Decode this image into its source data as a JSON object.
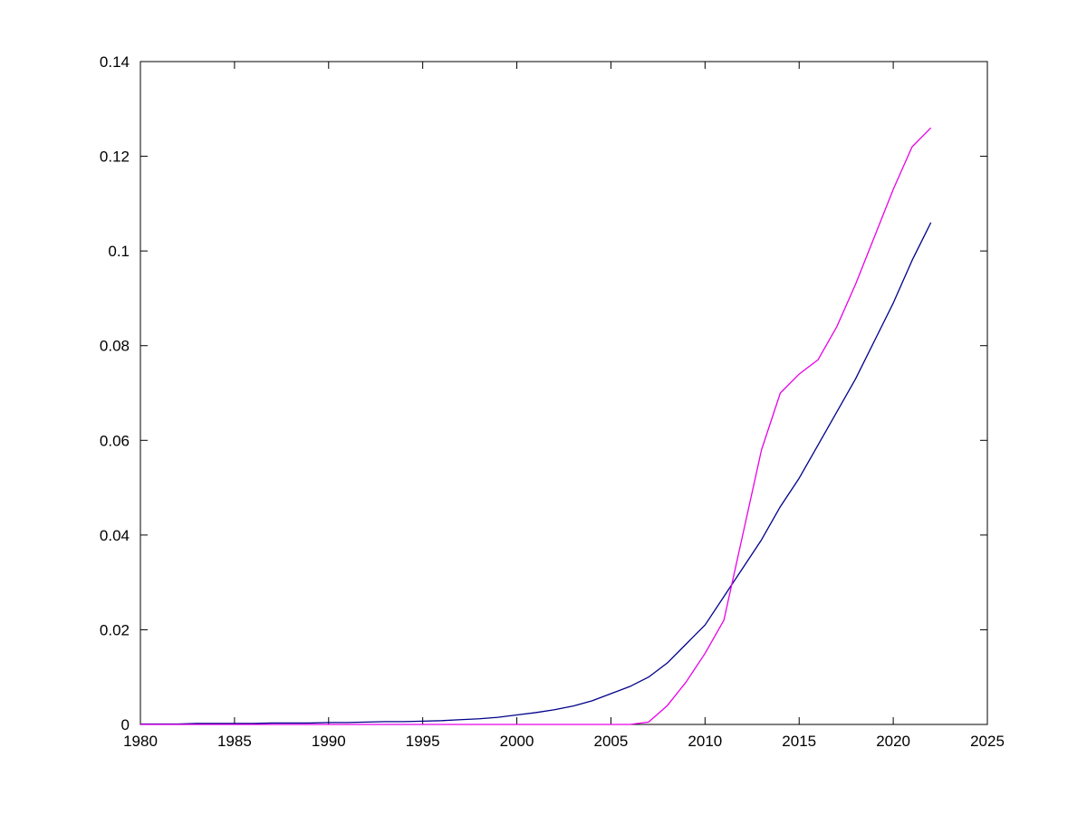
{
  "figure": {
    "background": "#ffffff",
    "axes_color": "#000000"
  },
  "chart_data": {
    "type": "line",
    "title": "",
    "xlabel": "",
    "ylabel": "",
    "grid": false,
    "legend": "none",
    "xlim": [
      1980,
      2025
    ],
    "ylim": [
      0,
      0.14
    ],
    "x_tick_labels": [
      "1980",
      "1985",
      "1990",
      "1995",
      "2000",
      "2005",
      "2010",
      "2015",
      "2020",
      "2025"
    ],
    "x_ticks": [
      1980,
      1985,
      1990,
      1995,
      2000,
      2005,
      2010,
      2015,
      2020,
      2025
    ],
    "y_tick_labels": [
      "0",
      "0.02",
      "0.04",
      "0.06",
      "0.08",
      "0.1",
      "0.12",
      "0.14"
    ],
    "y_ticks": [
      0,
      0.02,
      0.04,
      0.06,
      0.08,
      0.1,
      0.12,
      0.14
    ],
    "x": [
      1980,
      1981,
      1982,
      1983,
      1984,
      1985,
      1986,
      1987,
      1988,
      1989,
      1990,
      1991,
      1992,
      1993,
      1994,
      1995,
      1996,
      1997,
      1998,
      1999,
      2000,
      2001,
      2002,
      2003,
      2004,
      2005,
      2006,
      2007,
      2008,
      2009,
      2010,
      2011,
      2012,
      2013,
      2014,
      2015,
      2016,
      2017,
      2018,
      2019,
      2020,
      2021,
      2022
    ],
    "series": [
      {
        "name": "dark-blue-line",
        "color": "#00008b",
        "values": [
          0.0001,
          0.0001,
          0.0001,
          0.0002,
          0.0002,
          0.0002,
          0.0002,
          0.0003,
          0.0003,
          0.0003,
          0.0004,
          0.0004,
          0.0005,
          0.0006,
          0.0006,
          0.0007,
          0.0008,
          0.001,
          0.0012,
          0.0015,
          0.002,
          0.0025,
          0.0031,
          0.0039,
          0.005,
          0.0065,
          0.008,
          0.01,
          0.013,
          0.017,
          0.021,
          0.027,
          0.033,
          0.039,
          0.046,
          0.052,
          0.059,
          0.066,
          0.073,
          0.081,
          0.089,
          0.098,
          0.106
        ]
      },
      {
        "name": "magenta-line",
        "color": "#e800e8",
        "values": [
          0.0,
          0.0,
          0.0,
          0.0,
          0.0,
          0.0,
          0.0,
          0.0,
          0.0,
          0.0,
          0.0,
          0.0,
          0.0,
          0.0,
          0.0,
          0.0,
          0.0,
          0.0,
          0.0,
          0.0,
          0.0,
          0.0,
          0.0,
          0.0,
          0.0,
          0.0,
          0.0,
          0.0005,
          0.004,
          0.009,
          0.015,
          0.022,
          0.04,
          0.058,
          0.07,
          0.074,
          0.077,
          0.084,
          0.093,
          0.103,
          0.113,
          0.122,
          0.126
        ]
      }
    ]
  }
}
